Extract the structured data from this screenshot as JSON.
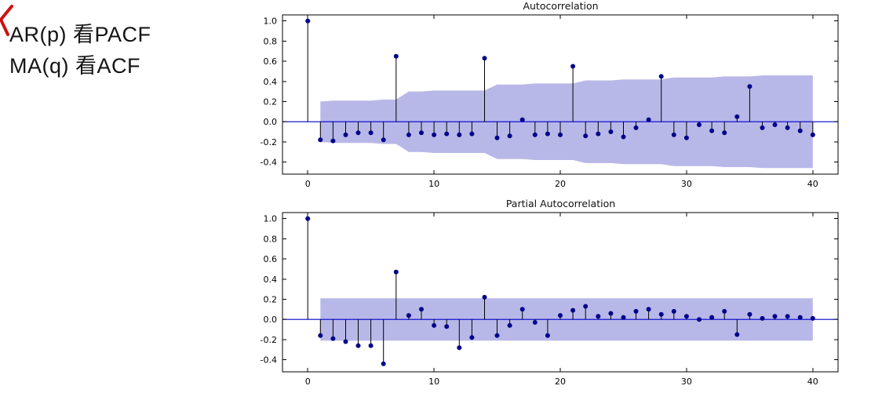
{
  "annotation": {
    "line1": "AR(p)  看PACF",
    "line2": "MA(q) 看ACF"
  },
  "colors": {
    "background": "#ffffff",
    "stem": "#000000",
    "marker": "#00008b",
    "zero_line": "#0000cd",
    "conf_band_fill": "#b8b8e8",
    "axis": "#000000",
    "tick_label": "#000000",
    "pen_mark": "#cc1111"
  },
  "chart_data": [
    {
      "type": "stem",
      "title": "Autocorrelation",
      "xlabel": "",
      "ylabel": "",
      "legend": "none",
      "grid": false,
      "lags": [
        0,
        1,
        2,
        3,
        4,
        5,
        6,
        7,
        8,
        9,
        10,
        11,
        12,
        13,
        14,
        15,
        16,
        17,
        18,
        19,
        20,
        21,
        22,
        23,
        24,
        25,
        26,
        27,
        28,
        29,
        30,
        31,
        32,
        33,
        34,
        35,
        36,
        37,
        38,
        39,
        40
      ],
      "values": [
        1.0,
        -0.18,
        -0.19,
        -0.13,
        -0.11,
        -0.11,
        -0.18,
        0.65,
        -0.13,
        -0.11,
        -0.13,
        -0.12,
        -0.13,
        -0.12,
        0.63,
        -0.16,
        -0.14,
        0.02,
        -0.13,
        -0.12,
        -0.13,
        0.55,
        -0.14,
        -0.12,
        -0.1,
        -0.15,
        -0.06,
        0.02,
        0.45,
        -0.13,
        -0.16,
        -0.03,
        -0.09,
        -0.11,
        0.05,
        0.35,
        -0.06,
        -0.03,
        -0.06,
        -0.09,
        -0.13
      ],
      "conf_start_lag": 1,
      "conf_halfwidth": [
        0.2,
        0.21,
        0.21,
        0.21,
        0.21,
        0.22,
        0.22,
        0.3,
        0.3,
        0.31,
        0.31,
        0.31,
        0.31,
        0.31,
        0.37,
        0.37,
        0.37,
        0.38,
        0.38,
        0.38,
        0.38,
        0.41,
        0.41,
        0.41,
        0.42,
        0.42,
        0.42,
        0.42,
        0.44,
        0.44,
        0.44,
        0.44,
        0.45,
        0.45,
        0.45,
        0.46,
        0.46,
        0.46,
        0.46,
        0.46
      ],
      "xticks": [
        0,
        10,
        20,
        30,
        40
      ],
      "yticks": [
        1.0,
        0.8,
        0.6,
        0.4,
        0.2,
        0.0,
        -0.2,
        -0.4
      ],
      "xlim": [
        -2,
        42
      ],
      "ylim": [
        -0.52,
        1.06
      ]
    },
    {
      "type": "stem",
      "title": "Partial Autocorrelation",
      "xlabel": "",
      "ylabel": "",
      "legend": "none",
      "grid": false,
      "lags": [
        0,
        1,
        2,
        3,
        4,
        5,
        6,
        7,
        8,
        9,
        10,
        11,
        12,
        13,
        14,
        15,
        16,
        17,
        18,
        19,
        20,
        21,
        22,
        23,
        24,
        25,
        26,
        27,
        28,
        29,
        30,
        31,
        32,
        33,
        34,
        35,
        36,
        37,
        38,
        39,
        40
      ],
      "values": [
        1.0,
        -0.16,
        -0.19,
        -0.22,
        -0.26,
        -0.26,
        -0.44,
        0.47,
        0.04,
        0.1,
        -0.06,
        -0.07,
        -0.28,
        -0.18,
        0.22,
        -0.16,
        -0.06,
        0.1,
        -0.03,
        -0.16,
        0.04,
        0.09,
        0.13,
        0.03,
        0.06,
        0.02,
        0.08,
        0.1,
        0.05,
        0.08,
        0.03,
        0.0,
        0.02,
        0.08,
        -0.15,
        0.05,
        0.01,
        0.03,
        0.03,
        0.02,
        0.01
      ],
      "conf_start_lag": 1,
      "conf_halfwidth": [
        0.21,
        0.21,
        0.21,
        0.21,
        0.21,
        0.21,
        0.21,
        0.21,
        0.21,
        0.21,
        0.21,
        0.21,
        0.21,
        0.21,
        0.21,
        0.21,
        0.21,
        0.21,
        0.21,
        0.21,
        0.21,
        0.21,
        0.21,
        0.21,
        0.21,
        0.21,
        0.21,
        0.21,
        0.21,
        0.21,
        0.21,
        0.21,
        0.21,
        0.21,
        0.21,
        0.21,
        0.21,
        0.21,
        0.21,
        0.21
      ],
      "xticks": [
        0,
        10,
        20,
        30,
        40
      ],
      "yticks": [
        1.0,
        0.8,
        0.6,
        0.4,
        0.2,
        0.0,
        -0.2,
        -0.4
      ],
      "xlim": [
        -2,
        42
      ],
      "ylim": [
        -0.52,
        1.06
      ]
    }
  ]
}
